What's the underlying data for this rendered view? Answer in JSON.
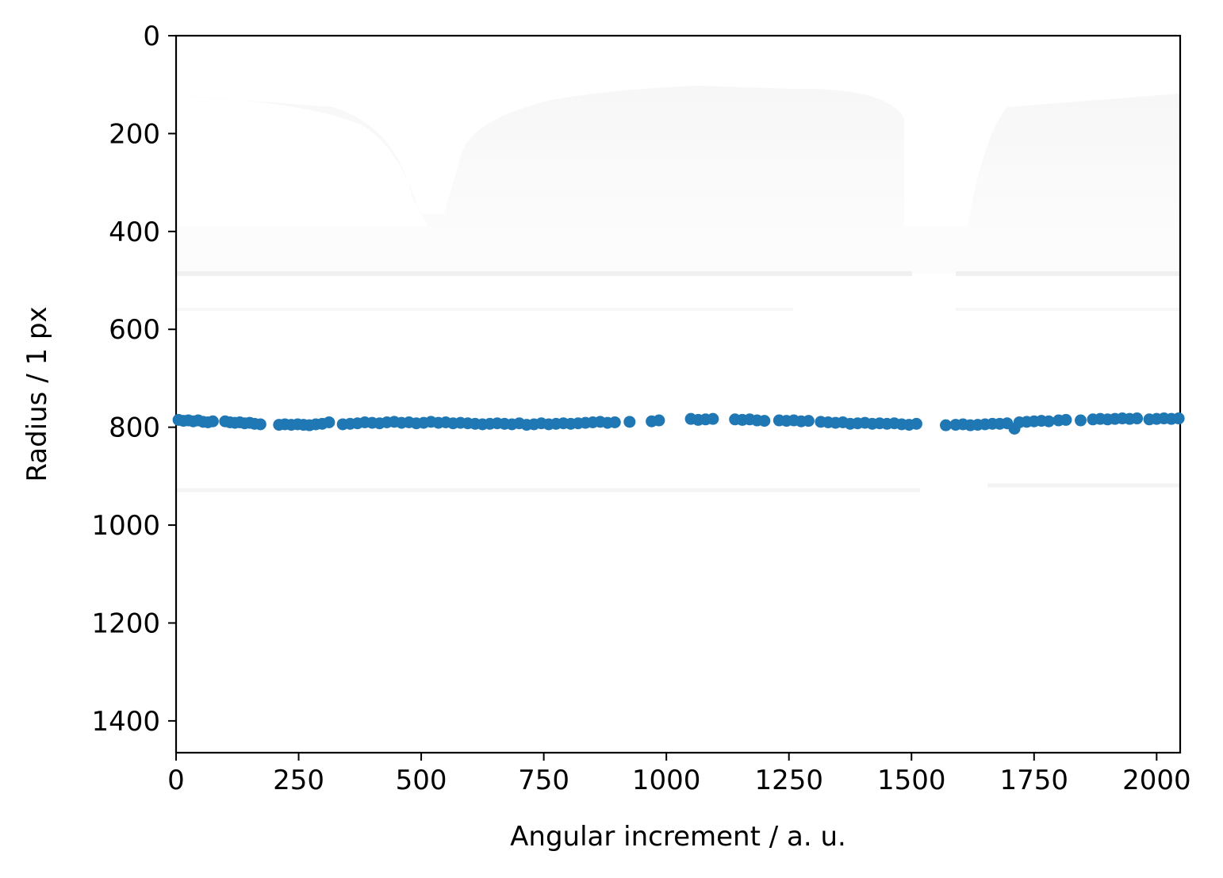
{
  "chart_data": {
    "type": "scatter",
    "xlabel": "Angular increment / a. u.",
    "ylabel": "Radius / 1 px",
    "xlim": [
      0,
      2048
    ],
    "ylim": [
      1465,
      0
    ],
    "y_inverted": true,
    "x_ticks": [
      0,
      250,
      500,
      750,
      1000,
      1250,
      1500,
      1750,
      2000
    ],
    "y_ticks": [
      0,
      200,
      400,
      600,
      800,
      1000,
      1200,
      1400
    ],
    "grid": false,
    "background": "faint grayscale image",
    "series": [
      {
        "color": "#1f77b4",
        "points": [
          [
            5,
            785
          ],
          [
            15,
            787
          ],
          [
            25,
            786
          ],
          [
            35,
            788
          ],
          [
            45,
            786
          ],
          [
            55,
            789
          ],
          [
            65,
            790
          ],
          [
            75,
            788
          ],
          [
            100,
            788
          ],
          [
            110,
            790
          ],
          [
            120,
            791
          ],
          [
            130,
            790
          ],
          [
            140,
            792
          ],
          [
            150,
            791
          ],
          [
            160,
            793
          ],
          [
            172,
            794
          ],
          [
            210,
            795
          ],
          [
            222,
            794
          ],
          [
            235,
            795
          ],
          [
            248,
            794
          ],
          [
            260,
            795
          ],
          [
            272,
            796
          ],
          [
            285,
            794
          ],
          [
            298,
            793
          ],
          [
            312,
            790
          ],
          [
            340,
            794
          ],
          [
            355,
            793
          ],
          [
            370,
            792
          ],
          [
            385,
            790
          ],
          [
            400,
            791
          ],
          [
            415,
            792
          ],
          [
            430,
            790
          ],
          [
            445,
            789
          ],
          [
            460,
            791
          ],
          [
            475,
            790
          ],
          [
            490,
            792
          ],
          [
            505,
            791
          ],
          [
            520,
            789
          ],
          [
            535,
            791
          ],
          [
            550,
            790
          ],
          [
            565,
            792
          ],
          [
            580,
            791
          ],
          [
            595,
            792
          ],
          [
            610,
            793
          ],
          [
            625,
            794
          ],
          [
            640,
            793
          ],
          [
            655,
            792
          ],
          [
            670,
            793
          ],
          [
            685,
            794
          ],
          [
            700,
            792
          ],
          [
            715,
            795
          ],
          [
            730,
            794
          ],
          [
            745,
            792
          ],
          [
            760,
            794
          ],
          [
            775,
            793
          ],
          [
            790,
            792
          ],
          [
            805,
            793
          ],
          [
            820,
            792
          ],
          [
            835,
            791
          ],
          [
            850,
            790
          ],
          [
            865,
            789
          ],
          [
            880,
            791
          ],
          [
            895,
            790
          ],
          [
            925,
            789
          ],
          [
            970,
            788
          ],
          [
            985,
            786
          ],
          [
            1050,
            783
          ],
          [
            1065,
            785
          ],
          [
            1080,
            784
          ],
          [
            1095,
            783
          ],
          [
            1140,
            784
          ],
          [
            1155,
            785
          ],
          [
            1170,
            784
          ],
          [
            1185,
            786
          ],
          [
            1200,
            787
          ],
          [
            1230,
            786
          ],
          [
            1245,
            787
          ],
          [
            1260,
            786
          ],
          [
            1275,
            788
          ],
          [
            1290,
            787
          ],
          [
            1315,
            789
          ],
          [
            1330,
            790
          ],
          [
            1345,
            791
          ],
          [
            1360,
            790
          ],
          [
            1375,
            793
          ],
          [
            1390,
            792
          ],
          [
            1405,
            791
          ],
          [
            1420,
            793
          ],
          [
            1435,
            792
          ],
          [
            1450,
            793
          ],
          [
            1465,
            792
          ],
          [
            1480,
            794
          ],
          [
            1495,
            795
          ],
          [
            1510,
            793
          ],
          [
            1570,
            796
          ],
          [
            1590,
            795
          ],
          [
            1605,
            794
          ],
          [
            1620,
            796
          ],
          [
            1635,
            795
          ],
          [
            1650,
            794
          ],
          [
            1665,
            793
          ],
          [
            1680,
            793
          ],
          [
            1695,
            792
          ],
          [
            1710,
            803
          ],
          [
            1720,
            790
          ],
          [
            1735,
            789
          ],
          [
            1750,
            788
          ],
          [
            1765,
            787
          ],
          [
            1780,
            788
          ],
          [
            1800,
            786
          ],
          [
            1815,
            785
          ],
          [
            1845,
            786
          ],
          [
            1870,
            784
          ],
          [
            1885,
            783
          ],
          [
            1900,
            784
          ],
          [
            1915,
            783
          ],
          [
            1930,
            782
          ],
          [
            1945,
            783
          ],
          [
            1960,
            782
          ],
          [
            1985,
            784
          ],
          [
            2000,
            783
          ],
          [
            2015,
            782
          ],
          [
            2030,
            783
          ],
          [
            2045,
            782
          ]
        ]
      }
    ]
  }
}
